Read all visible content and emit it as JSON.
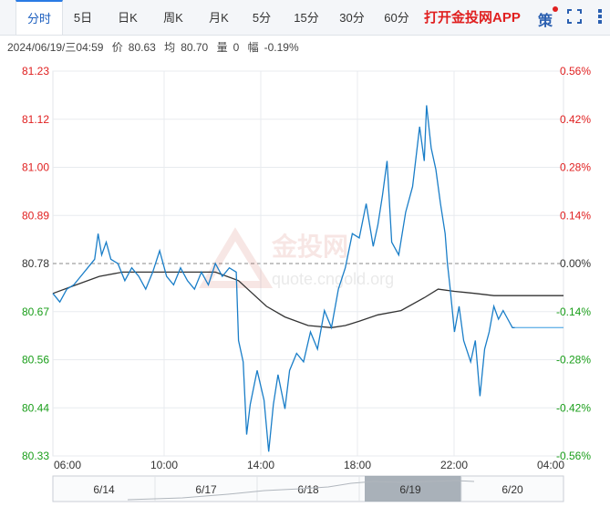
{
  "tabs": [
    "分时",
    "5日",
    "日K",
    "周K",
    "月K",
    "5分",
    "15分",
    "30分",
    "60分"
  ],
  "active_tab": "分时",
  "app_link": "打开金投网APP",
  "strategy_label": "策",
  "icons": {
    "expand": "fullscreen-icon",
    "more": "more-vertical-icon"
  },
  "info": {
    "datetime": "2024/06/19/三04:59",
    "price_label": "价",
    "price": "80.63",
    "avg_label": "均",
    "avg": "80.70",
    "volume_label": "量",
    "volume": "0",
    "change_label": "幅",
    "change": "-0.19%"
  },
  "watermark": {
    "brand": "金投网",
    "url": "quote.cngold.org"
  },
  "colors": {
    "price_line": "#1a7ec8",
    "avg_line": "#333333",
    "up": "#e02020",
    "down": "#1a9e1a",
    "flat": "#333333"
  },
  "chart_data": {
    "type": "line",
    "y_ticks": [
      "81.23",
      "81.12",
      "81.00",
      "80.89",
      "80.78",
      "80.67",
      "80.56",
      "80.44",
      "80.33"
    ],
    "pct_ticks": [
      "0.56%",
      "0.42%",
      "0.28%",
      "0.14%",
      "0.00%",
      "-0.14%",
      "-0.28%",
      "-0.42%",
      "-0.56%"
    ],
    "x_ticks": [
      "06:00",
      "10:00",
      "14:00",
      "18:00",
      "22:00",
      "04:00"
    ],
    "ylim": [
      80.33,
      81.23
    ],
    "prev_close": 80.78,
    "x_range_hours": [
      0,
      22
    ],
    "price_series": [
      [
        0.0,
        80.71
      ],
      [
        0.3,
        80.69
      ],
      [
        0.6,
        80.72
      ],
      [
        0.9,
        80.73
      ],
      [
        1.2,
        80.75
      ],
      [
        1.5,
        80.77
      ],
      [
        1.8,
        80.79
      ],
      [
        1.95,
        80.85
      ],
      [
        2.1,
        80.8
      ],
      [
        2.3,
        80.83
      ],
      [
        2.5,
        80.79
      ],
      [
        2.8,
        80.78
      ],
      [
        3.1,
        80.74
      ],
      [
        3.4,
        80.77
      ],
      [
        3.7,
        80.75
      ],
      [
        4.0,
        80.72
      ],
      [
        4.3,
        80.76
      ],
      [
        4.6,
        80.81
      ],
      [
        4.9,
        80.75
      ],
      [
        5.2,
        80.73
      ],
      [
        5.5,
        80.77
      ],
      [
        5.8,
        80.74
      ],
      [
        6.1,
        80.72
      ],
      [
        6.4,
        80.76
      ],
      [
        6.7,
        80.73
      ],
      [
        7.0,
        80.78
      ],
      [
        7.3,
        80.75
      ],
      [
        7.6,
        80.77
      ],
      [
        7.9,
        80.76
      ],
      [
        8.0,
        80.6
      ],
      [
        8.2,
        80.55
      ],
      [
        8.35,
        80.38
      ],
      [
        8.5,
        80.45
      ],
      [
        8.8,
        80.53
      ],
      [
        9.1,
        80.46
      ],
      [
        9.3,
        80.34
      ],
      [
        9.5,
        80.45
      ],
      [
        9.7,
        80.52
      ],
      [
        10.0,
        80.44
      ],
      [
        10.2,
        80.53
      ],
      [
        10.5,
        80.57
      ],
      [
        10.8,
        80.55
      ],
      [
        11.1,
        80.62
      ],
      [
        11.4,
        80.58
      ],
      [
        11.7,
        80.67
      ],
      [
        12.0,
        80.63
      ],
      [
        12.3,
        80.72
      ],
      [
        12.6,
        80.77
      ],
      [
        12.9,
        80.85
      ],
      [
        13.2,
        80.84
      ],
      [
        13.5,
        80.92
      ],
      [
        13.8,
        80.82
      ],
      [
        14.0,
        80.87
      ],
      [
        14.2,
        80.94
      ],
      [
        14.4,
        81.02
      ],
      [
        14.6,
        80.83
      ],
      [
        14.9,
        80.8
      ],
      [
        15.2,
        80.9
      ],
      [
        15.5,
        80.96
      ],
      [
        15.8,
        81.1
      ],
      [
        16.0,
        81.02
      ],
      [
        16.1,
        81.15
      ],
      [
        16.3,
        81.05
      ],
      [
        16.5,
        81.0
      ],
      [
        16.7,
        80.92
      ],
      [
        16.9,
        80.85
      ],
      [
        17.0,
        80.78
      ],
      [
        17.1,
        80.73
      ],
      [
        17.3,
        80.62
      ],
      [
        17.5,
        80.68
      ],
      [
        17.7,
        80.6
      ],
      [
        18.0,
        80.55
      ],
      [
        18.2,
        80.6
      ],
      [
        18.4,
        80.47
      ],
      [
        18.6,
        80.58
      ],
      [
        18.8,
        80.62
      ],
      [
        19.0,
        80.68
      ],
      [
        19.2,
        80.65
      ],
      [
        19.4,
        80.67
      ],
      [
        19.6,
        80.65
      ],
      [
        19.8,
        80.63
      ],
      [
        19.9,
        80.63
      ]
    ],
    "flat_extension": [
      [
        19.9,
        80.63
      ],
      [
        22.0,
        80.63
      ]
    ],
    "avg_series": [
      [
        0.0,
        80.71
      ],
      [
        1.0,
        80.73
      ],
      [
        2.0,
        80.75
      ],
      [
        3.0,
        80.76
      ],
      [
        4.0,
        80.76
      ],
      [
        5.0,
        80.76
      ],
      [
        6.0,
        80.76
      ],
      [
        7.0,
        80.76
      ],
      [
        8.0,
        80.74
      ],
      [
        8.6,
        80.71
      ],
      [
        9.2,
        80.68
      ],
      [
        10.0,
        80.655
      ],
      [
        11.0,
        80.635
      ],
      [
        12.0,
        80.63
      ],
      [
        12.6,
        80.635
      ],
      [
        13.2,
        80.645
      ],
      [
        14.0,
        80.66
      ],
      [
        15.0,
        80.67
      ],
      [
        16.0,
        80.7
      ],
      [
        16.6,
        80.72
      ],
      [
        17.3,
        80.715
      ],
      [
        18.2,
        80.71
      ],
      [
        19.0,
        80.705
      ],
      [
        20.0,
        80.705
      ],
      [
        22.0,
        80.705
      ]
    ],
    "navigator_dates": [
      "6/14",
      "6/17",
      "6/18",
      "6/19",
      "6/20"
    ],
    "navigator_selected": "6/19"
  }
}
